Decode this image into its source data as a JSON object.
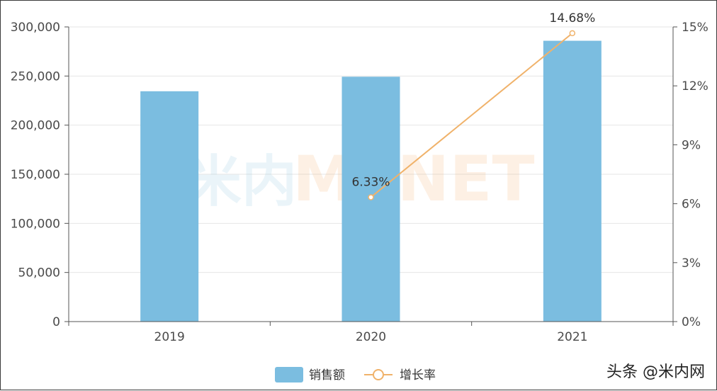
{
  "chart_data": {
    "type": "bar",
    "categories": [
      "2019",
      "2020",
      "2021"
    ],
    "series": [
      {
        "name": "销售额",
        "type": "bar",
        "axis": "left",
        "values": [
          234500,
          249300,
          285900
        ],
        "color": "#7bbde0"
      },
      {
        "name": "增长率",
        "type": "line",
        "axis": "right",
        "values": [
          null,
          6.33,
          14.68
        ],
        "color": "#f0b26a"
      }
    ],
    "data_labels": {
      "增长率": [
        "",
        "6.33%",
        "14.68%"
      ]
    },
    "left_axis": {
      "ylim": [
        0,
        300000
      ],
      "ticks": [
        0,
        50000,
        100000,
        150000,
        200000,
        250000,
        300000
      ],
      "tick_labels": [
        "0",
        "50,000",
        "100,000",
        "150,000",
        "200,000",
        "250,000",
        "300,000"
      ]
    },
    "right_axis": {
      "ylim": [
        0,
        15
      ],
      "ticks": [
        0,
        3,
        6,
        9,
        12,
        15
      ],
      "tick_labels": [
        "0%",
        "3%",
        "6%",
        "9%",
        "12%",
        "15%"
      ]
    },
    "legend": {
      "placement": "bottom-center",
      "items": [
        {
          "label": "销售额",
          "marker": "bar",
          "color": "#7bbde0"
        },
        {
          "label": "增长率",
          "marker": "line-circle",
          "color": "#f0b26a"
        }
      ]
    },
    "grid": true,
    "watermark": {
      "text1": "米内",
      "text2": "MENET"
    },
    "source": "头条 @米内网"
  }
}
